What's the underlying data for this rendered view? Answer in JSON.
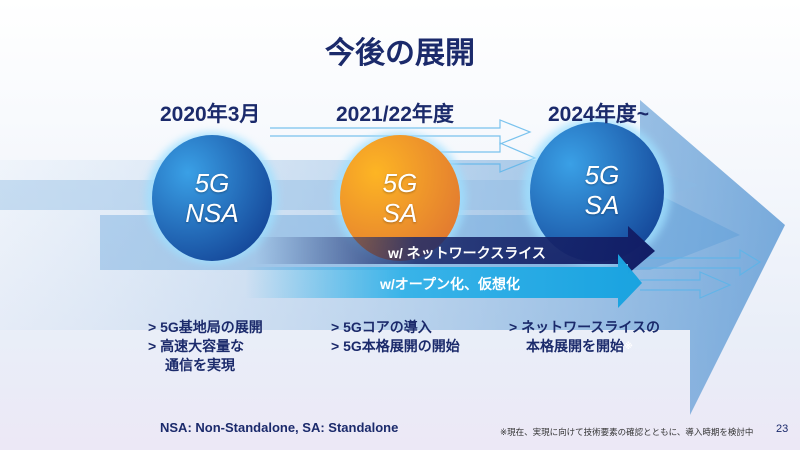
{
  "title": "今後の展開",
  "milestones": [
    {
      "date": "2020年3月",
      "circle_line1": "5G",
      "circle_line2": "NSA",
      "bullets": [
        "> 5G基地局の展開",
        "> 高速大容量な",
        "通信を実現"
      ]
    },
    {
      "date": "2021/22年度",
      "circle_line1": "5G",
      "circle_line2": "SA",
      "bullets": [
        "> 5Gコアの導入",
        "> 5G本格展開の開始"
      ]
    },
    {
      "date": "2024年度~",
      "circle_line1": "5G",
      "circle_line2": "SA",
      "bullets": [
        "> ネットワースライスの",
        "本格展開を開始"
      ],
      "note_mark": "※"
    }
  ],
  "arrows": {
    "network_slice": "w/ ネットワークスライス",
    "open_virtual": "w/オープン化、仮想化"
  },
  "legend": "NSA: Non-Standalone,  SA: Standalone",
  "footnote": "※現在、実現に向けて技術要素の確認とともに、導入時期を検討中",
  "page_number": "23",
  "colors": {
    "navy": "#1b2a6b",
    "blue": "#1d6fc4",
    "orange": "#f39a2c",
    "cyan": "#22aee8"
  }
}
